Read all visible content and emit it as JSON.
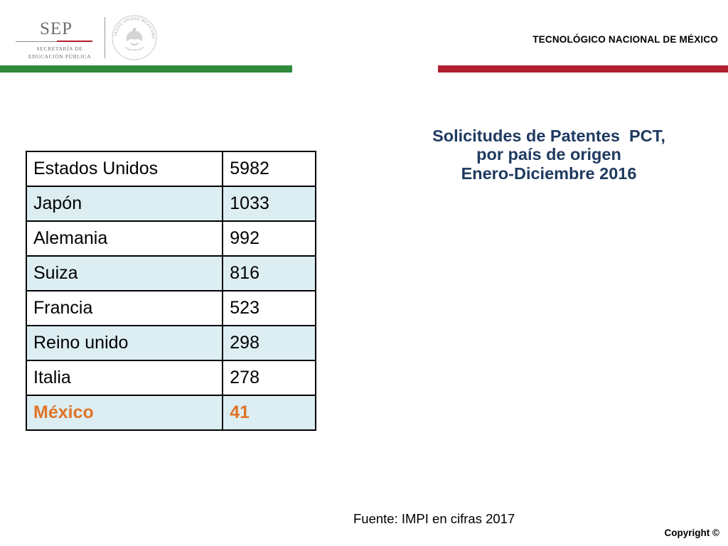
{
  "header": {
    "sep_logo": {
      "name": "SEP",
      "line1": "SECRETARÍA DE",
      "line2": "EDUCACIÓN PÚBLICA"
    },
    "seal_icon": "mexican-coat-of-arms",
    "seal_text": "ESTADOS UNIDOS MEXICANOS",
    "institution": "TECNOLÓGICO NACIONAL DE MÉXICO",
    "colors": {
      "green": "#2f8a3c",
      "red": "#b01e2f"
    }
  },
  "title": {
    "line1": "Solicitudes de Patentes  PCT,",
    "line2": "por país de origen",
    "line3": "Enero-Diciembre 2016",
    "color": "#1f3a60"
  },
  "table": {
    "rows": [
      {
        "country": "Estados Unidos",
        "value": "5982"
      },
      {
        "country": "Japón",
        "value": "1033"
      },
      {
        "country": "Alemania",
        "value": "992"
      },
      {
        "country": "Suiza",
        "value": "816"
      },
      {
        "country": "Francia",
        "value": "523"
      },
      {
        "country": "Reino unido",
        "value": "298"
      },
      {
        "country": "Italia",
        "value": "278"
      },
      {
        "country": "México",
        "value": "41"
      }
    ],
    "highlight_color": "#e07428",
    "stripe_color": "#ddeef3"
  },
  "footer": {
    "source": "Fuente: IMPI en cifras 2017",
    "copyright": "Copyright ©"
  }
}
